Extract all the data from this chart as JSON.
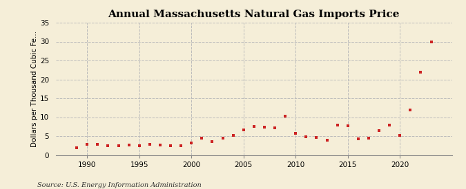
{
  "title": "Annual Massachusetts Natural Gas Imports Price",
  "ylabel": "Dollars per Thousand Cubic Fe...",
  "source": "Source: U.S. Energy Information Administration",
  "background_color": "#f5eed8",
  "plot_background_color": "#f5eed8",
  "marker_color": "#cc2222",
  "years": [
    1989,
    1990,
    1991,
    1992,
    1993,
    1994,
    1995,
    1996,
    1997,
    1998,
    1999,
    2000,
    2001,
    2002,
    2003,
    2004,
    2005,
    2006,
    2007,
    2008,
    2009,
    2010,
    2011,
    2012,
    2013,
    2014,
    2015,
    2016,
    2017,
    2018,
    2019,
    2020,
    2021,
    2022,
    2023
  ],
  "values": [
    2.0,
    2.8,
    2.8,
    2.5,
    2.5,
    2.7,
    2.4,
    2.8,
    2.7,
    2.4,
    2.5,
    3.2,
    4.5,
    3.5,
    4.5,
    5.1,
    6.7,
    7.5,
    7.3,
    7.2,
    10.3,
    5.7,
    4.9,
    4.7,
    3.9,
    7.9,
    7.8,
    4.3,
    4.5,
    6.4,
    8.0,
    5.2,
    12.0,
    22.0,
    30.0
  ],
  "xlim": [
    1987.0,
    2025.0
  ],
  "ylim": [
    0,
    35
  ],
  "yticks": [
    0,
    5,
    10,
    15,
    20,
    25,
    30,
    35
  ],
  "xticks": [
    1990,
    1995,
    2000,
    2005,
    2010,
    2015,
    2020
  ],
  "grid_color": "#bbbbbb",
  "title_fontsize": 11,
  "label_fontsize": 7.5,
  "source_fontsize": 7.0
}
